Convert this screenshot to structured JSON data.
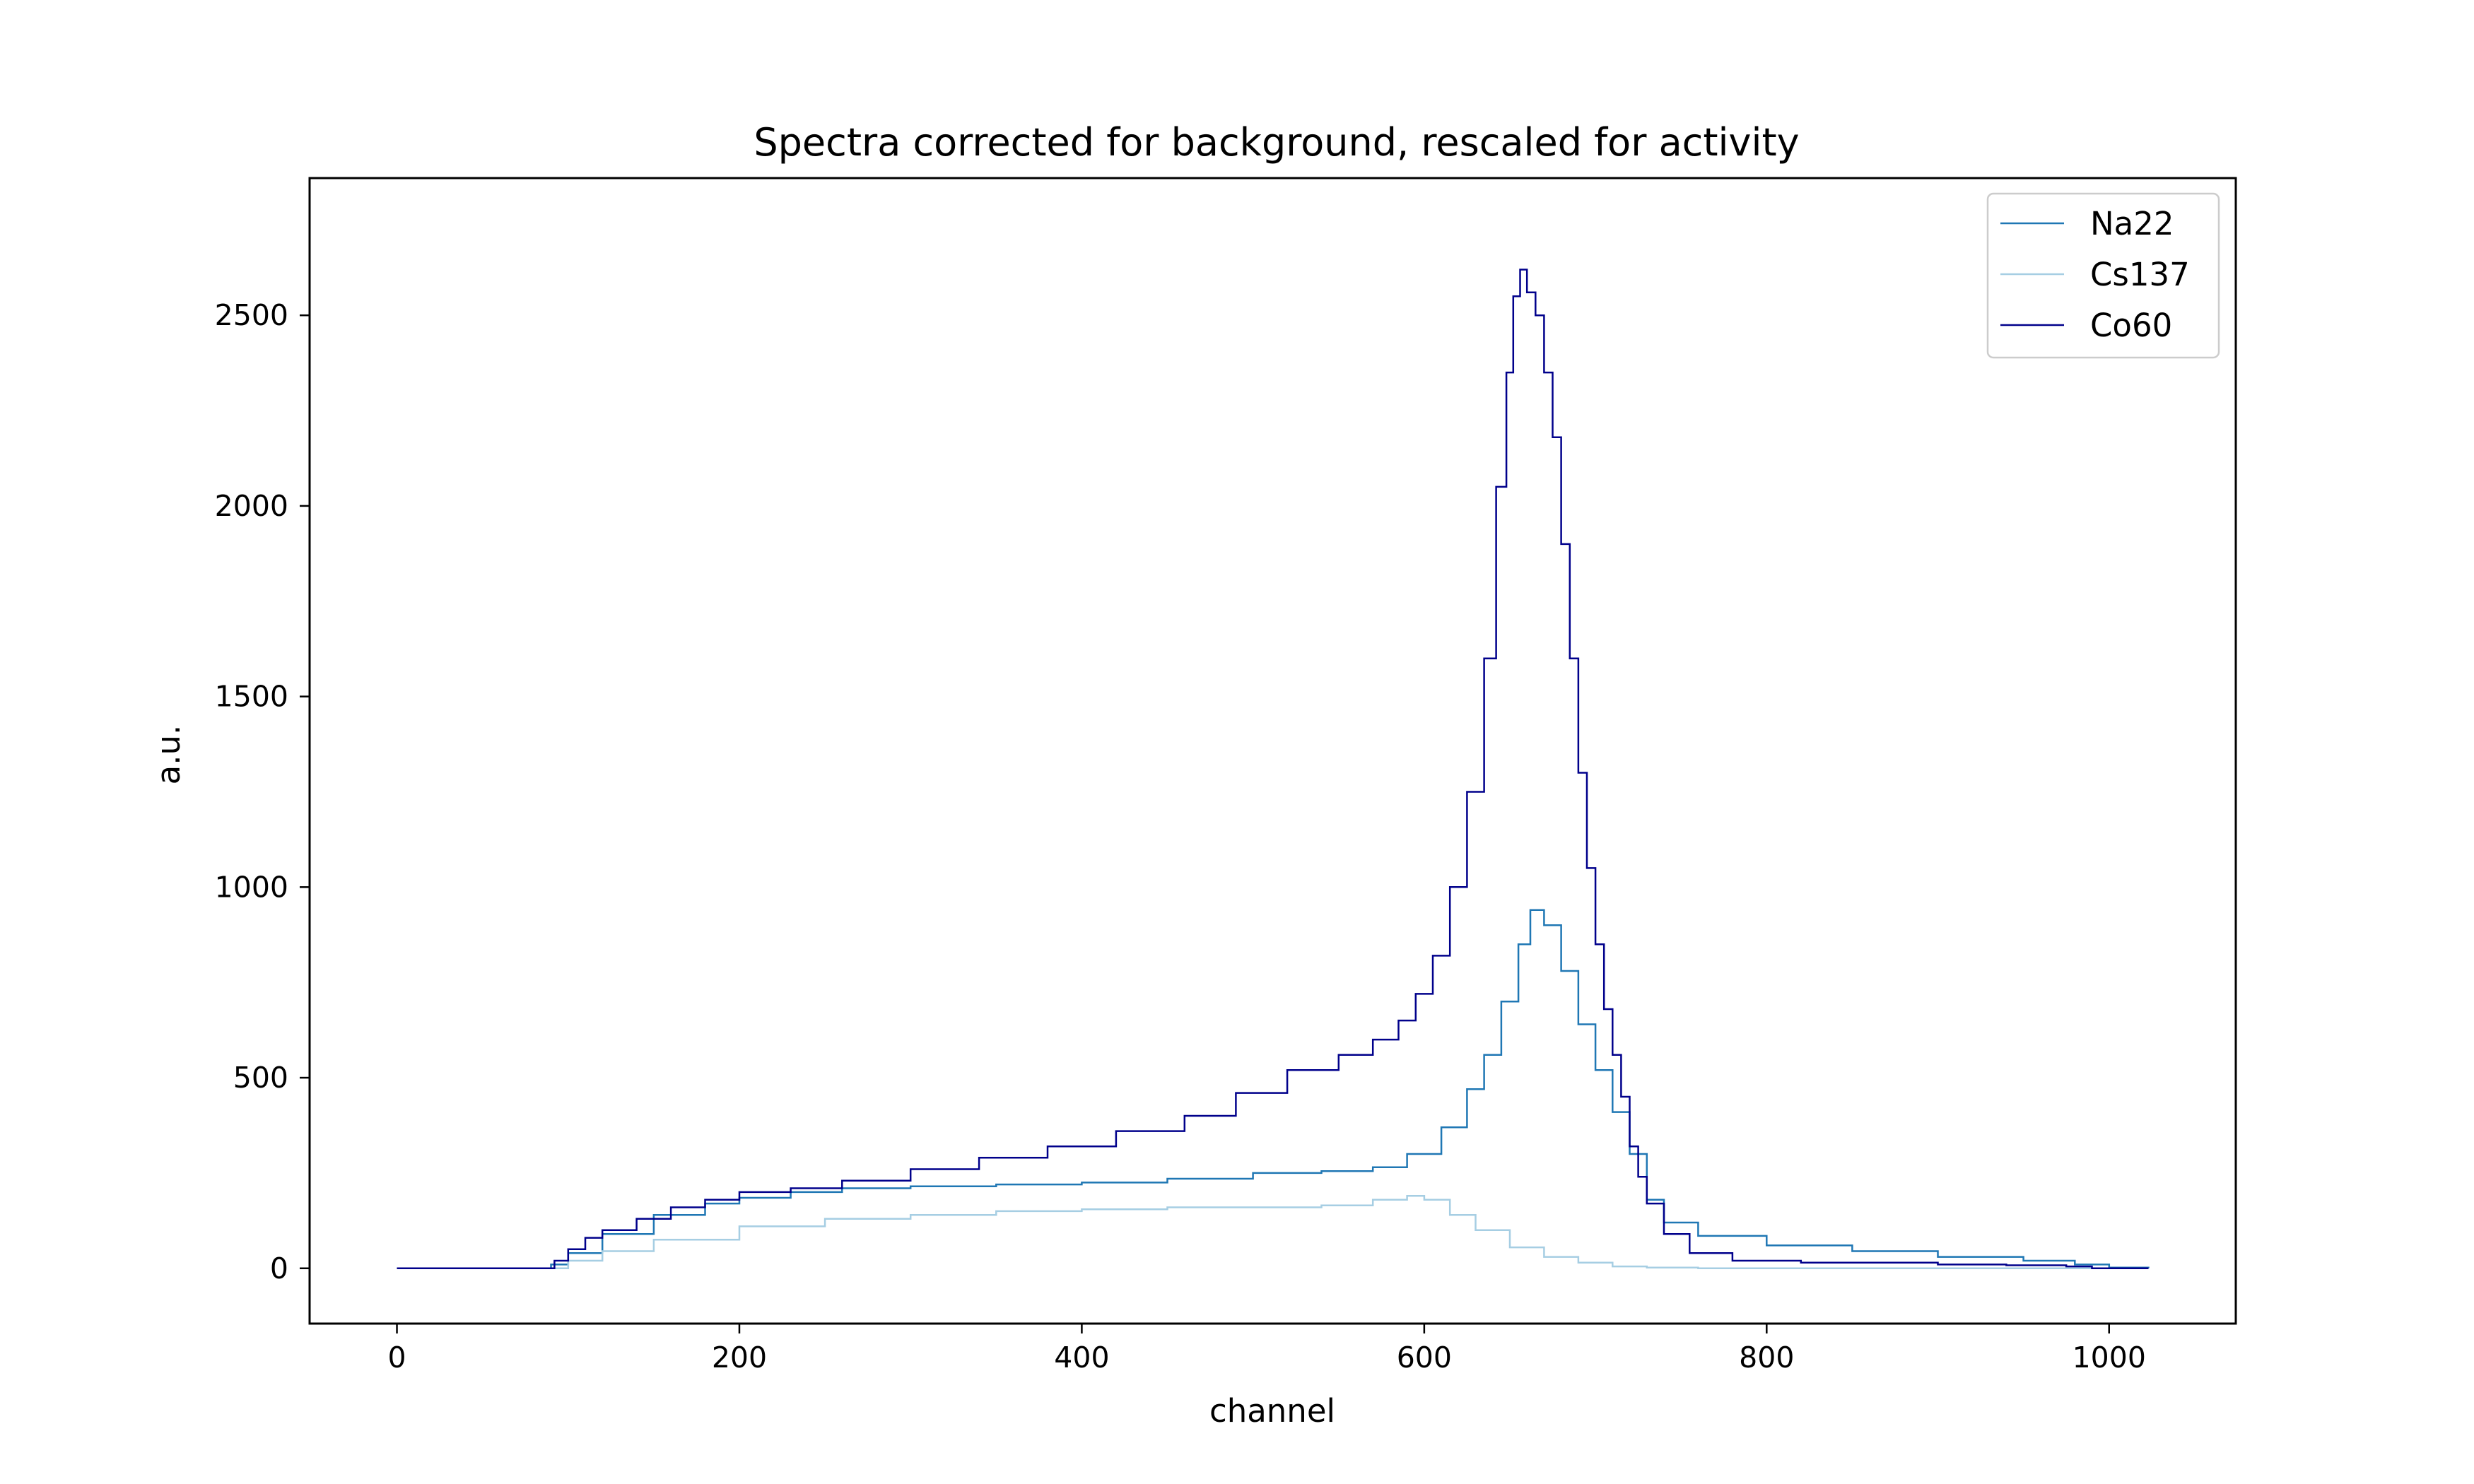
{
  "chart_data": {
    "type": "line",
    "title": "Spectra corrected for background, rescaled for activity",
    "xlabel": "channel",
    "ylabel": "a.u.",
    "xlim": [
      -51,
      1074
    ],
    "ylim": [
      -145,
      2860
    ],
    "xticks": [
      0,
      200,
      400,
      600,
      800,
      1000
    ],
    "yticks": [
      0,
      500,
      1000,
      1500,
      2000,
      2500
    ],
    "grid": false,
    "legend_position": "top-right",
    "series": [
      {
        "name": "Na22",
        "color": "#1f77b4",
        "points": [
          [
            0,
            0
          ],
          [
            80,
            0
          ],
          [
            90,
            10
          ],
          [
            100,
            40
          ],
          [
            120,
            90
          ],
          [
            150,
            140
          ],
          [
            180,
            170
          ],
          [
            200,
            185
          ],
          [
            230,
            200
          ],
          [
            260,
            210
          ],
          [
            300,
            215
          ],
          [
            350,
            220
          ],
          [
            400,
            225
          ],
          [
            450,
            235
          ],
          [
            500,
            250
          ],
          [
            540,
            255
          ],
          [
            570,
            265
          ],
          [
            590,
            300
          ],
          [
            610,
            370
          ],
          [
            625,
            470
          ],
          [
            635,
            560
          ],
          [
            645,
            700
          ],
          [
            655,
            850
          ],
          [
            662,
            940
          ],
          [
            670,
            900
          ],
          [
            680,
            780
          ],
          [
            690,
            640
          ],
          [
            700,
            520
          ],
          [
            710,
            410
          ],
          [
            720,
            300
          ],
          [
            730,
            180
          ],
          [
            740,
            120
          ],
          [
            760,
            85
          ],
          [
            800,
            60
          ],
          [
            850,
            45
          ],
          [
            900,
            30
          ],
          [
            950,
            20
          ],
          [
            980,
            10
          ],
          [
            1000,
            2
          ],
          [
            1023,
            0
          ]
        ]
      },
      {
        "name": "Cs137",
        "color": "#a6cee3",
        "points": [
          [
            0,
            0
          ],
          [
            85,
            0
          ],
          [
            100,
            20
          ],
          [
            120,
            45
          ],
          [
            150,
            75
          ],
          [
            200,
            110
          ],
          [
            250,
            130
          ],
          [
            300,
            140
          ],
          [
            350,
            150
          ],
          [
            400,
            155
          ],
          [
            450,
            160
          ],
          [
            500,
            160
          ],
          [
            540,
            165
          ],
          [
            570,
            180
          ],
          [
            590,
            190
          ],
          [
            600,
            180
          ],
          [
            615,
            140
          ],
          [
            630,
            100
          ],
          [
            650,
            55
          ],
          [
            670,
            30
          ],
          [
            690,
            15
          ],
          [
            710,
            5
          ],
          [
            730,
            2
          ],
          [
            760,
            0
          ],
          [
            1023,
            0
          ]
        ]
      },
      {
        "name": "Co60",
        "color": "#00008b",
        "points": [
          [
            0,
            0
          ],
          [
            85,
            0
          ],
          [
            92,
            20
          ],
          [
            100,
            50
          ],
          [
            110,
            80
          ],
          [
            120,
            100
          ],
          [
            140,
            130
          ],
          [
            160,
            160
          ],
          [
            180,
            180
          ],
          [
            200,
            200
          ],
          [
            230,
            210
          ],
          [
            260,
            230
          ],
          [
            300,
            260
          ],
          [
            340,
            290
          ],
          [
            380,
            320
          ],
          [
            420,
            360
          ],
          [
            460,
            400
          ],
          [
            490,
            460
          ],
          [
            520,
            520
          ],
          [
            550,
            560
          ],
          [
            570,
            600
          ],
          [
            585,
            650
          ],
          [
            595,
            720
          ],
          [
            605,
            820
          ],
          [
            615,
            1000
          ],
          [
            625,
            1250
          ],
          [
            635,
            1600
          ],
          [
            642,
            2050
          ],
          [
            648,
            2350
          ],
          [
            652,
            2550
          ],
          [
            656,
            2620
          ],
          [
            660,
            2560
          ],
          [
            665,
            2500
          ],
          [
            670,
            2350
          ],
          [
            675,
            2180
          ],
          [
            680,
            1900
          ],
          [
            685,
            1600
          ],
          [
            690,
            1300
          ],
          [
            695,
            1050
          ],
          [
            700,
            850
          ],
          [
            705,
            680
          ],
          [
            710,
            560
          ],
          [
            715,
            450
          ],
          [
            720,
            320
          ],
          [
            725,
            240
          ],
          [
            730,
            170
          ],
          [
            740,
            90
          ],
          [
            755,
            40
          ],
          [
            780,
            20
          ],
          [
            820,
            15
          ],
          [
            860,
            15
          ],
          [
            900,
            10
          ],
          [
            940,
            8
          ],
          [
            975,
            5
          ],
          [
            990,
            0
          ],
          [
            1023,
            0
          ]
        ]
      }
    ]
  }
}
